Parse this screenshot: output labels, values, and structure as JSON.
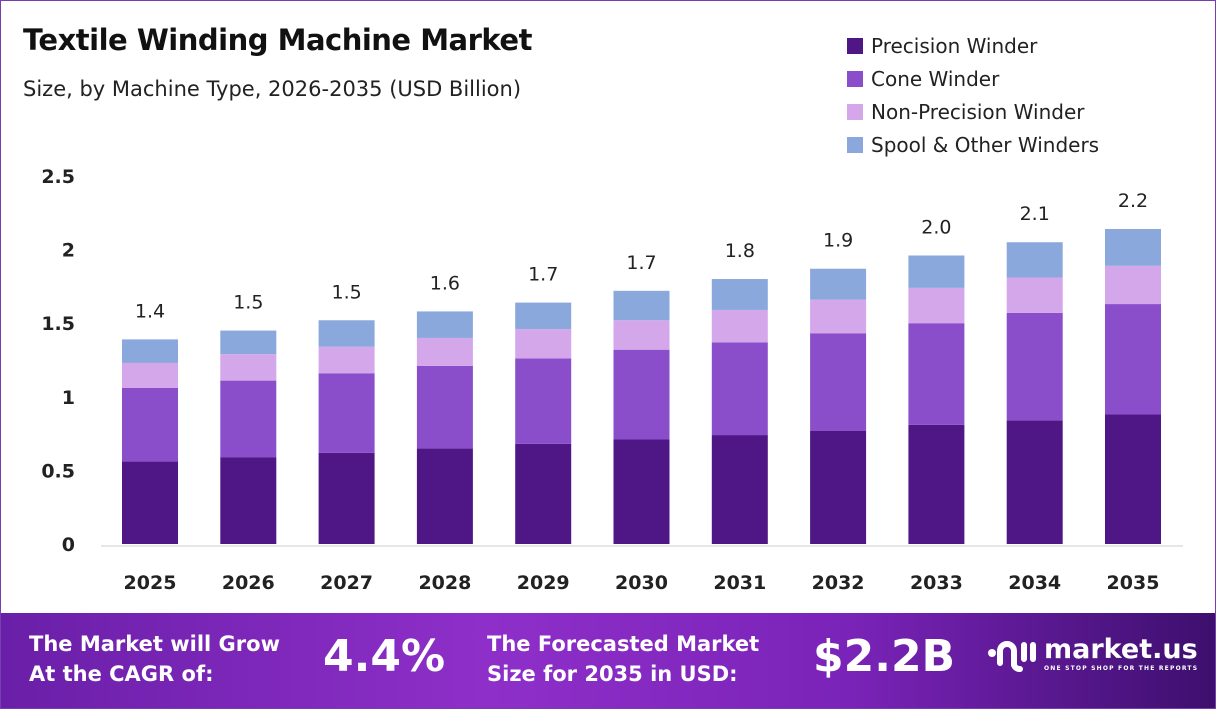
{
  "chart_data": {
    "type": "bar",
    "stacked": true,
    "title": "Textile Winding Machine Market",
    "subtitle": "Size, by Machine Type, 2026-2035 (USD Billion)",
    "categories": [
      "2025",
      "2026",
      "2027",
      "2028",
      "2029",
      "2030",
      "2031",
      "2032",
      "2033",
      "2034",
      "2035"
    ],
    "series": [
      {
        "name": "Precision Winder",
        "color": "#4f1785",
        "values": [
          0.56,
          0.59,
          0.62,
          0.65,
          0.68,
          0.71,
          0.74,
          0.77,
          0.81,
          0.84,
          0.88
        ]
      },
      {
        "name": "Cone Winder",
        "color": "#8a4ecb",
        "values": [
          0.5,
          0.52,
          0.54,
          0.56,
          0.58,
          0.61,
          0.63,
          0.66,
          0.69,
          0.73,
          0.75
        ]
      },
      {
        "name": "Non-Precision Winder",
        "color": "#d4a6ea",
        "values": [
          0.17,
          0.18,
          0.18,
          0.19,
          0.2,
          0.2,
          0.22,
          0.23,
          0.24,
          0.24,
          0.26
        ]
      },
      {
        "name": "Spool & Other Winders",
        "color": "#8aa8dc",
        "values": [
          0.16,
          0.16,
          0.18,
          0.18,
          0.18,
          0.2,
          0.21,
          0.21,
          0.22,
          0.24,
          0.25
        ]
      }
    ],
    "totals_labels": [
      "1.4",
      "1.5",
      "1.5",
      "1.6",
      "1.7",
      "1.7",
      "1.8",
      "1.9",
      "2.0",
      "2.1",
      "2.2"
    ],
    "yticks": [
      "0",
      "0.5",
      "1",
      "1.5",
      "2",
      "2.5"
    ],
    "ylim": [
      0,
      2.5
    ],
    "grid": false,
    "legend": "top-right"
  },
  "banner": {
    "cagr_label_1": "The Market will Grow",
    "cagr_label_2": "At the CAGR of:",
    "cagr_value": "4.4%",
    "size_label_1": "The Forecasted Market",
    "size_label_2": "Size for 2035 in USD:",
    "size_value": "$2.2B",
    "logo_name": "market.us",
    "logo_tagline": "ONE STOP SHOP FOR THE REPORTS"
  }
}
